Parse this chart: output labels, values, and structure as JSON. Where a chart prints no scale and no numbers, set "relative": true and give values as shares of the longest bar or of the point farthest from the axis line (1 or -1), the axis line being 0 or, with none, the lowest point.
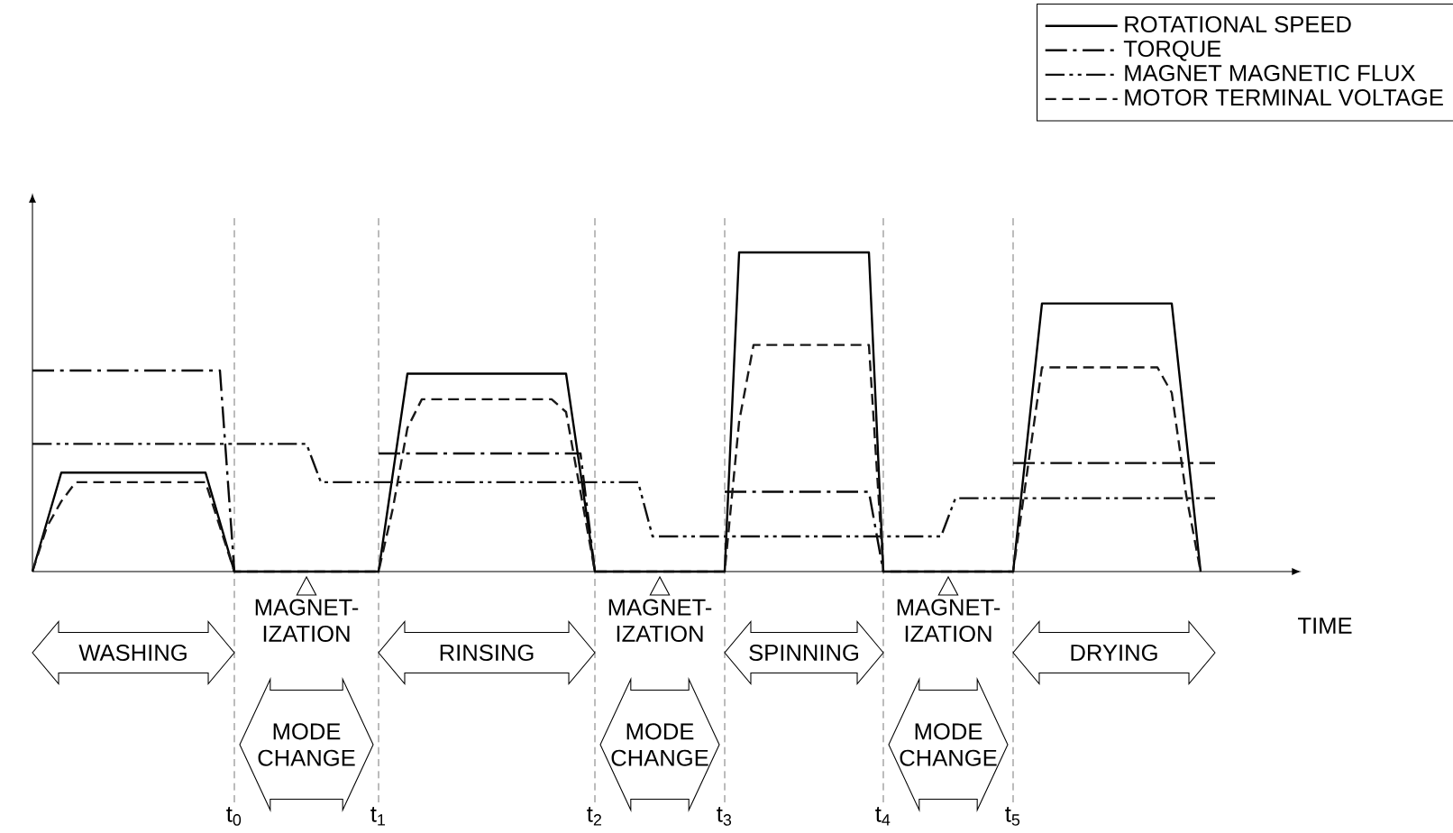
{
  "chart_data": {
    "type": "line",
    "relative": true,
    "xlabel": "TIME",
    "grid": "x",
    "categories": [
      null,
      null,
      null,
      null,
      null,
      null,
      null,
      null,
      null,
      null,
      null,
      null,
      null,
      null,
      "t$_{0}$",
      null,
      null,
      null,
      null,
      null,
      null,
      null,
      null,
      null,
      "t$_{1}$",
      null,
      null,
      null,
      null,
      null,
      null,
      null,
      null,
      null,
      null,
      null,
      null,
      null,
      null,
      "t$_{2}$",
      null,
      null,
      null,
      null,
      null,
      null,
      null,
      null,
      "t$_{3}$",
      null,
      null,
      null,
      null,
      null,
      null,
      null,
      null,
      null,
      null,
      "t$_{4}$",
      null,
      null,
      null,
      null,
      null,
      null,
      null,
      null,
      "t$_{5}$",
      null,
      null,
      null,
      null,
      null,
      null,
      null,
      null,
      null,
      null,
      null,
      null,
      null,
      null
    ],
    "legend": "top right",
    "series": [
      {
        "name": "ROTATIONAL SPEED",
        "color": "#000000",
        "line_style": "solid",
        "values": [
          0,
          0.155,
          0.31,
          0.31,
          0.31,
          0.31,
          0.31,
          0.31,
          0.31,
          0.31,
          0.31,
          0.31,
          0.31,
          0.155,
          0,
          0,
          0,
          0,
          0,
          0,
          0,
          0,
          0,
          0,
          0,
          0.31,
          0.62,
          0.62,
          0.62,
          0.62,
          0.62,
          0.62,
          0.62,
          0.62,
          0.62,
          0.62,
          0.62,
          0.62,
          0.31,
          0,
          0,
          0,
          0,
          0,
          0,
          0,
          0,
          0,
          0,
          1,
          1,
          1,
          1,
          1,
          1,
          1,
          1,
          1,
          1,
          0,
          0,
          0,
          0,
          0,
          0,
          0,
          0,
          0,
          0,
          0.42,
          0.84,
          0.84,
          0.84,
          0.84,
          0.84,
          0.84,
          0.84,
          0.84,
          0.84,
          0.84,
          0.42,
          0,
          null
        ]
      },
      {
        "name": "TORQUE",
        "color": "#080808",
        "line_style": "dashdot",
        "values": [
          0.63,
          0.63,
          0.63,
          0.63,
          0.63,
          0.63,
          0.63,
          0.63,
          0.63,
          0.63,
          0.63,
          0.63,
          0.63,
          0.63,
          0,
          null,
          null,
          null,
          null,
          null,
          null,
          null,
          null,
          null,
          0.37,
          0.37,
          0.37,
          0.37,
          0.37,
          0.37,
          0.37,
          0.37,
          0.37,
          0.37,
          0.37,
          0.37,
          0.37,
          0.37,
          0.37,
          0,
          null,
          null,
          null,
          null,
          null,
          null,
          null,
          null,
          0.25,
          0.25,
          0.25,
          0.25,
          0.25,
          0.25,
          0.25,
          0.25,
          0.25,
          0.25,
          0.25,
          0,
          null,
          null,
          null,
          null,
          null,
          null,
          null,
          null,
          0.34,
          0.34,
          0.34,
          0.34,
          0.34,
          0.34,
          0.34,
          0.34,
          0.34,
          0.34,
          0.34,
          0.34,
          0.34,
          0.34,
          0.34
        ]
      },
      {
        "name": "MAGNET MAGNETIC FLUX",
        "color": "#101010",
        "line_style": "dashdotdot",
        "values": [
          0.4,
          0.4,
          0.4,
          0.4,
          0.4,
          0.4,
          0.4,
          0.4,
          0.4,
          0.4,
          0.4,
          0.4,
          0.4,
          0.4,
          0.4,
          0.4,
          0.4,
          0.4,
          0.4,
          0.4,
          0.28,
          0.28,
          0.28,
          0.28,
          0.28,
          0.28,
          0.28,
          0.28,
          0.28,
          0.28,
          0.28,
          0.28,
          0.28,
          0.28,
          0.28,
          0.28,
          0.28,
          0.28,
          0.28,
          0.28,
          0.28,
          0.28,
          0.28,
          0.11,
          0.11,
          0.11,
          0.11,
          0.11,
          0.11,
          0.11,
          0.11,
          0.11,
          0.11,
          0.11,
          0.11,
          0.11,
          0.11,
          0.11,
          0.11,
          0.11,
          0.11,
          0.11,
          0.11,
          0.11,
          0.23,
          0.23,
          0.23,
          0.23,
          0.23,
          0.23,
          0.23,
          0.23,
          0.23,
          0.23,
          0.23,
          0.23,
          0.23,
          0.23,
          0.23,
          0.23,
          0.23,
          0.23,
          0.23
        ]
      },
      {
        "name": "MOTOR TERMINAL VOLTAGE",
        "color": "#181818",
        "line_style": "dashed",
        "values": [
          0,
          0.14,
          0.22,
          0.28,
          0.28,
          0.28,
          0.28,
          0.28,
          0.28,
          0.28,
          0.28,
          0.28,
          0.28,
          0.14,
          0,
          0,
          0,
          0,
          0,
          0,
          0,
          0,
          0,
          0,
          0,
          0.2,
          0.45,
          0.54,
          0.54,
          0.54,
          0.54,
          0.54,
          0.54,
          0.54,
          0.54,
          0.54,
          0.54,
          0.5,
          0.25,
          0,
          0,
          0,
          0,
          0,
          0,
          0,
          0,
          0,
          0,
          0.47,
          0.71,
          0.71,
          0.71,
          0.71,
          0.71,
          0.71,
          0.71,
          0.71,
          0.71,
          0,
          0,
          0,
          0,
          0,
          0,
          0,
          0,
          0,
          0,
          0.32,
          0.64,
          0.64,
          0.64,
          0.64,
          0.64,
          0.64,
          0.64,
          0.64,
          0.64,
          0.56,
          0.24,
          0,
          null
        ]
      }
    ],
    "annotations": [
      "WASHING",
      "MODE CHANGE",
      "RINSING",
      "MODE CHANGE",
      "SPINNING",
      "MODE CHANGE",
      "DRYING",
      "MAGNET-IZATION",
      "MAGNET-IZATION",
      "MAGNET-IZATION"
    ]
  }
}
